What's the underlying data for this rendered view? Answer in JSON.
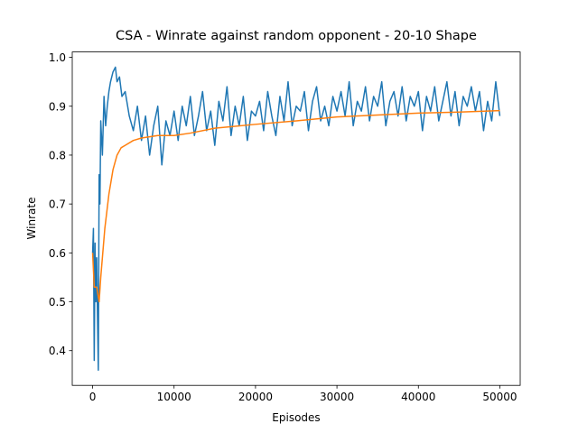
{
  "chart_data": {
    "type": "line",
    "title": "CSA - Winrate against random opponent - 20-10 Shape",
    "x_label": "Episodes",
    "y_label": "Winrate",
    "xlim": [
      -2500,
      52500
    ],
    "ylim": [
      0.329,
      1.011
    ],
    "xticks": [
      0,
      10000,
      20000,
      30000,
      40000,
      50000
    ],
    "yticks": [
      0.4,
      0.5,
      0.6,
      0.7,
      0.8,
      0.9,
      {
        "value": 1,
        "label": "1.0"
      }
    ],
    "series": [
      {
        "color": "#1f77b4",
        "x": [
          0,
          100,
          200,
          300,
          400,
          500,
          600,
          700,
          800,
          900,
          1000,
          1200,
          1400,
          1600,
          1800,
          2000,
          2200,
          2500,
          2800,
          3000,
          3300,
          3600,
          4000,
          4500,
          5000,
          5500,
          6000,
          6500,
          7000,
          7500,
          8000,
          8500,
          9000,
          9500,
          10000,
          10500,
          11000,
          11500,
          12000,
          12500,
          13000,
          13500,
          14000,
          14500,
          15000,
          15500,
          16000,
          16500,
          17000,
          17500,
          18000,
          18500,
          19000,
          19500,
          20000,
          20500,
          21000,
          21500,
          22000,
          22500,
          23000,
          23500,
          24000,
          24500,
          25000,
          25500,
          26000,
          26500,
          27000,
          27500,
          28000,
          28500,
          29000,
          29500,
          30000,
          30500,
          31000,
          31500,
          32000,
          32500,
          33000,
          33500,
          34000,
          34500,
          35000,
          35500,
          36000,
          36500,
          37000,
          37500,
          38000,
          38500,
          39000,
          39500,
          40000,
          40500,
          41000,
          41500,
          42000,
          42500,
          43000,
          43500,
          44000,
          44500,
          45000,
          45500,
          46000,
          46500,
          47000,
          47500,
          48000,
          48500,
          49000,
          49500,
          50000
        ],
        "values": [
          0.6,
          0.65,
          0.38,
          0.62,
          0.5,
          0.59,
          0.47,
          0.36,
          0.76,
          0.7,
          0.87,
          0.8,
          0.92,
          0.86,
          0.9,
          0.93,
          0.95,
          0.97,
          0.98,
          0.95,
          0.96,
          0.92,
          0.93,
          0.88,
          0.85,
          0.9,
          0.83,
          0.88,
          0.8,
          0.86,
          0.9,
          0.78,
          0.87,
          0.84,
          0.89,
          0.83,
          0.9,
          0.86,
          0.92,
          0.84,
          0.88,
          0.93,
          0.85,
          0.89,
          0.82,
          0.91,
          0.87,
          0.94,
          0.84,
          0.9,
          0.86,
          0.92,
          0.83,
          0.89,
          0.88,
          0.91,
          0.85,
          0.93,
          0.88,
          0.84,
          0.92,
          0.87,
          0.95,
          0.86,
          0.9,
          0.89,
          0.93,
          0.85,
          0.91,
          0.94,
          0.87,
          0.9,
          0.86,
          0.92,
          0.89,
          0.93,
          0.88,
          0.95,
          0.86,
          0.91,
          0.89,
          0.94,
          0.87,
          0.92,
          0.9,
          0.95,
          0.86,
          0.91,
          0.93,
          0.88,
          0.94,
          0.87,
          0.92,
          0.9,
          0.93,
          0.85,
          0.92,
          0.89,
          0.94,
          0.87,
          0.91,
          0.95,
          0.88,
          0.93,
          0.86,
          0.92,
          0.9,
          0.94,
          0.89,
          0.93,
          0.85,
          0.91,
          0.87,
          0.95,
          0.88
        ]
      },
      {
        "color": "#ff7f0e",
        "x": [
          0,
          200,
          500,
          800,
          1000,
          1500,
          2000,
          2500,
          3000,
          3500,
          4000,
          5000,
          6000,
          8000,
          10000,
          12000,
          15000,
          20000,
          25000,
          30000,
          35000,
          40000,
          45000,
          50000
        ],
        "values": [
          0.6,
          0.53,
          0.53,
          0.5,
          0.55,
          0.65,
          0.72,
          0.77,
          0.8,
          0.815,
          0.82,
          0.83,
          0.835,
          0.84,
          0.84,
          0.845,
          0.855,
          0.863,
          0.87,
          0.878,
          0.882,
          0.886,
          0.888,
          0.891
        ]
      }
    ]
  }
}
